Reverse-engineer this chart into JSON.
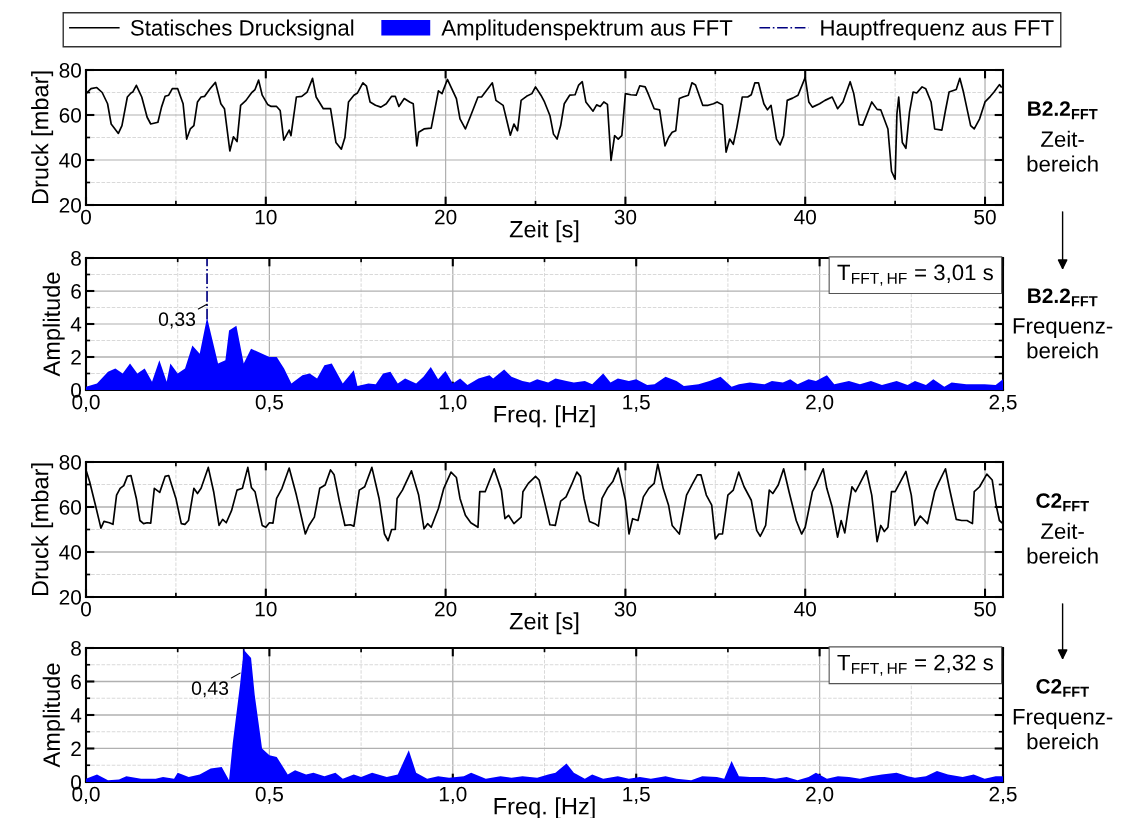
{
  "chart_data": [
    {
      "type": "line",
      "legend": "top",
      "grid": true,
      "xlabel": "Zeit [s]",
      "ylabel": "Druck [mbar]",
      "xlim": [
        0,
        51
      ],
      "xticks": [
        0,
        10,
        20,
        30,
        40,
        50
      ],
      "ylim": [
        20,
        80
      ],
      "yticks": [
        20,
        40,
        60,
        80
      ],
      "annotations": [
        "B2.2$_{FFT}$",
        "Zeit-\nbereich"
      ],
      "series": [
        {
          "name": "Statisches Drucksignal",
          "color": "#000000",
          "x": [
            0,
            0.28,
            0.6,
            0.9,
            1.2,
            1.4,
            1.8,
            2.0,
            2.3,
            2.5,
            2.6,
            2.8,
            3.1,
            3.4,
            3.6,
            4.0,
            4.2,
            4.4,
            4.6,
            4.8,
            5.1,
            5.4,
            5.6,
            5.8,
            6.0,
            6.2,
            6.4,
            6.6,
            6.9,
            7.2,
            7.5,
            7.7,
            8.0,
            8.2,
            8.4,
            8.6,
            8.9,
            9.2,
            9.4,
            9.6,
            9.8,
            10.1,
            10.3,
            10.6,
            10.8,
            11.0,
            11.3,
            11.4,
            11.7,
            12.0,
            12.3,
            12.6,
            12.8,
            13.2,
            13.6,
            13.9,
            14.2,
            14.4,
            14.6,
            14.9,
            15.1,
            15.4,
            15.6,
            15.8,
            16.1,
            16.4,
            16.7,
            17.0,
            17.2,
            17.4,
            17.7,
            18.0,
            18.2,
            18.4,
            18.5,
            18.8,
            19.2,
            19.6,
            19.8,
            20.1,
            20.6,
            20.8,
            21.1,
            21.4,
            21.8,
            22.0,
            22.6,
            22.8,
            23.2,
            23.6,
            23.8,
            24.0,
            24.2,
            24.5,
            24.8,
            25.0,
            25.3,
            25.5,
            25.8,
            26.0,
            26.2,
            26.4,
            26.6,
            26.9,
            27.2,
            27.4,
            27.6,
            27.8,
            28.2,
            28.4,
            28.6,
            28.8,
            29.0,
            29.2,
            29.4,
            29.6,
            29.8,
            30.0,
            30.3,
            30.6,
            30.8,
            31.1,
            31.3,
            31.6,
            31.9,
            32.2,
            32.4,
            32.6,
            32.8,
            33.0,
            33.2,
            33.5,
            33.7,
            33.9,
            34.3,
            34.6,
            34.9,
            35.1,
            35.4,
            35.6,
            35.8,
            36.0,
            36.2,
            36.5,
            36.8,
            37.0,
            37.2,
            37.4,
            37.7,
            37.9,
            38.1,
            38.4,
            38.6,
            38.8,
            39.0,
            39.3,
            39.6,
            40.0,
            40.2,
            40.4,
            40.8,
            41.1,
            41.5,
            41.8,
            42.1,
            42.5,
            42.7,
            43.0,
            43.2,
            43.7,
            44.0,
            44.2,
            44.6,
            44.8,
            45.0,
            45.1,
            45.2,
            45.4,
            45.6,
            45.8,
            46.0,
            46.2,
            46.5,
            46.7,
            47.0,
            47.2,
            47.6,
            47.8,
            48.0,
            48.4,
            48.6,
            48.8,
            49.2,
            49.4,
            49.7,
            50.0,
            50.3,
            50.5,
            50.8,
            50.9
          ],
          "values": [
            69.5,
            71.7,
            72.2,
            70,
            65,
            56,
            51.8,
            55.3,
            68,
            69.8,
            70.2,
            73.2,
            68,
            59,
            56,
            56.8,
            63.5,
            68.3,
            68.8,
            71.7,
            71.7,
            65,
            49.3,
            53.8,
            55.3,
            65.8,
            68,
            68.3,
            71.7,
            74.5,
            65,
            62.8,
            44,
            50.3,
            48.2,
            64.3,
            66.5,
            69.8,
            71.3,
            75.5,
            68.8,
            64.7,
            63.8,
            63.8,
            62,
            48.8,
            53.3,
            50.8,
            68,
            68.3,
            70.2,
            76.3,
            68,
            62.8,
            62.8,
            47.8,
            44.8,
            50,
            65.8,
            68.8,
            69.8,
            74.3,
            72.8,
            65.8,
            64.3,
            63.5,
            65,
            68.3,
            68.3,
            63.8,
            67.3,
            65.8,
            65,
            46.3,
            52.3,
            53.8,
            54.2,
            70.7,
            69.5,
            75.8,
            67.3,
            58.3,
            53.8,
            59.8,
            68,
            68,
            74.3,
            66.5,
            64.3,
            51,
            56,
            53,
            66.5,
            68.3,
            69.5,
            72.5,
            68.8,
            65.8,
            59.8,
            51.5,
            49.3,
            55.3,
            65,
            68.8,
            69,
            73.3,
            74.8,
            65.8,
            61.7,
            64.5,
            63.8,
            65.8,
            64.7,
            39.8,
            50.8,
            49.3,
            50.8,
            69.5,
            69,
            68.8,
            73,
            72.5,
            68.8,
            62.8,
            62.3,
            46.3,
            50,
            52.3,
            53,
            67.3,
            68,
            68.8,
            74.3,
            73.3,
            64.3,
            64.3,
            65,
            65.8,
            64.5,
            43.5,
            49.3,
            47,
            54.5,
            68,
            68,
            69,
            74.3,
            74.3,
            65,
            62.3,
            64.3,
            49.3,
            46.7,
            50.8,
            66.5,
            67.5,
            68.8,
            76.7,
            65.8,
            63.5,
            65,
            66.5,
            68,
            62.8,
            65.8,
            74.8,
            69.5,
            55.7,
            55.5,
            65.8,
            62.5,
            62.3,
            53.8,
            35,
            31.5,
            60.5,
            68,
            47.8,
            45.2,
            61.3,
            70.2,
            69.8,
            72.5,
            71.7,
            65.8,
            53.8,
            53.3,
            62,
            70.2,
            71.3,
            76.3,
            70.2,
            55.3,
            53.8,
            58.3,
            65.8,
            68.3,
            70.2,
            73.5,
            72.5
          ]
        }
      ]
    },
    {
      "type": "area",
      "legend": "top",
      "grid": true,
      "xlabel": "Freq. [Hz]",
      "ylabel": "Amplitude",
      "xlim": [
        0,
        2.5
      ],
      "xticks": [
        {
          "value": 0,
          "label": "0,0"
        },
        {
          "value": 0.5,
          "label": "0,5"
        },
        {
          "value": 1,
          "label": "1,0"
        },
        {
          "value": 1.5,
          "label": "1,5"
        },
        {
          "value": 2,
          "label": "2,0"
        },
        {
          "value": 2.5,
          "label": "2,5"
        }
      ],
      "ylim": [
        0,
        8
      ],
      "yticks": [
        0,
        2,
        4,
        6,
        8
      ],
      "ref_lines": [
        {
          "axis": "x",
          "value": 0.33,
          "label": "Hauptfrequenz aus FFT",
          "color": "#000080",
          "line_style": "dashdot"
        }
      ],
      "annotations": [
        {
          "text": "0,33",
          "x": 0.33,
          "y": 5.2
        },
        "T$_{FFT,HF}$ = 3,01 s",
        "B2.2$_{FFT}$",
        "Frequenz-\nbereich"
      ],
      "series": [
        {
          "name": "Amplitudenspektrum aus FFT",
          "color": "#0000ff",
          "x": [
            0,
            0.03,
            0.06,
            0.08,
            0.1,
            0.12,
            0.14,
            0.16,
            0.18,
            0.2,
            0.22,
            0.23,
            0.25,
            0.27,
            0.29,
            0.31,
            0.33,
            0.36,
            0.38,
            0.39,
            0.41,
            0.43,
            0.45,
            0.47,
            0.5,
            0.52,
            0.54,
            0.56,
            0.59,
            0.61,
            0.63,
            0.65,
            0.67,
            0.7,
            0.73,
            0.74,
            0.77,
            0.79,
            0.81,
            0.83,
            0.85,
            0.87,
            0.9,
            0.92,
            0.94,
            0.96,
            0.98,
            1.0,
            1.02,
            1.04,
            1.07,
            1.1,
            1.11,
            1.14,
            1.16,
            1.19,
            1.21,
            1.23,
            1.26,
            1.28,
            1.31,
            1.33,
            1.36,
            1.38,
            1.41,
            1.43,
            1.45,
            1.48,
            1.5,
            1.53,
            1.55,
            1.58,
            1.61,
            1.63,
            1.67,
            1.7,
            1.73,
            1.76,
            1.78,
            1.81,
            1.85,
            1.87,
            1.9,
            1.92,
            1.94,
            1.97,
            1.99,
            2.02,
            2.04,
            2.08,
            2.11,
            2.14,
            2.17,
            2.21,
            2.24,
            2.26,
            2.29,
            2.31,
            2.34,
            2.36,
            2.4,
            2.45,
            2.48,
            2.5
          ],
          "values": [
            0.2,
            0.4,
            1.1,
            1.3,
            1.0,
            1.6,
            1.0,
            1.3,
            0.5,
            1.8,
            0.5,
            1.6,
            1.0,
            1.3,
            2.7,
            2.2,
            4.4,
            1.6,
            1.8,
            3.6,
            3.9,
            1.6,
            2.5,
            2.3,
            2.0,
            2.0,
            1.3,
            0.4,
            0.9,
            1.0,
            0.7,
            1.5,
            1.6,
            0.4,
            1.2,
            0.25,
            0.4,
            0.35,
            1.0,
            1.1,
            0.4,
            0.7,
            0.4,
            0.8,
            1.4,
            0.65,
            1.15,
            0.4,
            0.7,
            0.3,
            0.7,
            0.9,
            0.7,
            1.25,
            0.8,
            0.55,
            0.45,
            0.65,
            0.45,
            0.7,
            0.55,
            0.45,
            0.55,
            0.35,
            1.0,
            0.45,
            0.7,
            0.55,
            0.65,
            0.3,
            0.35,
            0.8,
            0.55,
            0.25,
            0.35,
            0.55,
            0.8,
            0.2,
            0.35,
            0.45,
            0.35,
            0.55,
            0.45,
            0.65,
            0.35,
            0.65,
            0.55,
            0.9,
            0.35,
            0.55,
            0.35,
            0.55,
            0.3,
            0.55,
            0.3,
            0.55,
            0.3,
            0.65,
            0.2,
            0.45,
            0.35,
            0.35,
            0.3,
            0.65
          ]
        }
      ]
    },
    {
      "type": "line",
      "grid": true,
      "xlabel": "Zeit [s]",
      "ylabel": "Druck [mbar]",
      "xlim": [
        0,
        51
      ],
      "xticks": [
        0,
        10,
        20,
        30,
        40,
        50
      ],
      "ylim": [
        20,
        80
      ],
      "yticks": [
        20,
        40,
        60,
        80
      ],
      "annotations": [
        "C2$_{FFT}$",
        "Zeit-\nbereich"
      ],
      "series": [
        {
          "color": "#000000",
          "x": [
            0,
            0.2,
            0.55,
            0.83,
            1.0,
            1.3,
            1.5,
            1.7,
            1.9,
            2.1,
            2.3,
            2.5,
            2.8,
            3.0,
            3.2,
            3.4,
            3.6,
            3.8,
            4.1,
            4.4,
            4.6,
            5.0,
            5.3,
            5.5,
            5.7,
            6.0,
            6.2,
            6.4,
            6.8,
            7.1,
            7.4,
            7.6,
            7.8,
            8.1,
            8.4,
            8.7,
            9.0,
            9.2,
            9.4,
            9.8,
            10.0,
            10.2,
            10.4,
            10.6,
            10.9,
            11.3,
            11.7,
            12.2,
            12.4,
            12.7,
            13.0,
            13.3,
            13.6,
            13.8,
            14.1,
            14.4,
            14.7,
            14.9,
            15.2,
            15.5,
            15.9,
            16.3,
            16.6,
            16.8,
            17.0,
            17.2,
            17.3,
            17.6,
            18.1,
            18.5,
            18.8,
            19.0,
            19.2,
            19.6,
            19.9,
            20.3,
            20.6,
            20.8,
            21.1,
            21.4,
            21.8,
            21.9,
            22.2,
            22.7,
            23.1,
            23.3,
            23.5,
            23.8,
            24.2,
            24.3,
            24.6,
            25.0,
            25.2,
            25.5,
            25.8,
            26.1,
            26.4,
            26.7,
            27.0,
            27.3,
            27.5,
            27.7,
            28.0,
            28.3,
            28.5,
            28.7,
            29.0,
            29.3,
            29.6,
            30.0,
            30.2,
            30.4,
            30.7,
            31.0,
            31.3,
            31.6,
            31.8,
            32.1,
            32.4,
            32.6,
            33.0,
            33.4,
            33.7,
            34.0,
            34.2,
            34.5,
            34.8,
            35.0,
            35.2,
            35.4,
            35.7,
            36.0,
            36.3,
            36.6,
            37.0,
            37.3,
            37.5,
            37.8,
            38.0,
            38.2,
            38.5,
            38.8,
            39.1,
            39.5,
            39.8,
            40.0,
            40.4,
            40.6,
            41.0,
            41.2,
            41.5,
            41.8,
            42.0,
            42.2,
            42.4,
            42.6,
            42.8,
            43.0,
            43.4,
            43.7,
            44.0,
            44.2,
            44.4,
            44.6,
            44.8,
            45.0,
            45.6,
            45.9,
            46.1,
            46.4,
            46.8,
            47.2,
            47.4,
            47.8,
            48.0,
            48.4,
            48.7,
            49.0,
            49.3,
            49.4,
            49.7,
            50.1,
            50.4,
            50.6,
            50.8,
            51.0
          ],
          "values": [
            76.5,
            71.3,
            60,
            50.6,
            53.6,
            53,
            52.3,
            65.3,
            68.3,
            69.5,
            73.6,
            74,
            63.8,
            54,
            52.6,
            53,
            52.8,
            68.3,
            66.5,
            73.6,
            74,
            63.8,
            52.6,
            52.3,
            54,
            68.3,
            66,
            68.3,
            77.6,
            66.8,
            51.8,
            54.5,
            53,
            58.5,
            67.5,
            68.3,
            77.6,
            68.6,
            66.8,
            51.8,
            51,
            53,
            52.8,
            63.8,
            68.3,
            77.3,
            65.3,
            48,
            51.8,
            55.5,
            68.3,
            69.8,
            76.5,
            74.3,
            62.3,
            51.8,
            52.1,
            51.5,
            67.5,
            69,
            77.6,
            63.8,
            48,
            45,
            50,
            50,
            63.8,
            67.5,
            76.1,
            65.3,
            50.3,
            52.6,
            51,
            59.3,
            68.3,
            75.5,
            73.1,
            63.8,
            56.3,
            53,
            51,
            66.8,
            66.8,
            77,
            67.5,
            54.8,
            56.3,
            52.6,
            55.5,
            66.8,
            70.5,
            73.6,
            72,
            62.3,
            52.1,
            51.8,
            62.6,
            64.5,
            69.8,
            75.5,
            73.6,
            63.8,
            53.6,
            52.6,
            51.5,
            63.8,
            68.3,
            71.3,
            77.3,
            63,
            48,
            54.8,
            54,
            64.5,
            68.3,
            70.5,
            79.1,
            68.3,
            60.8,
            51.8,
            48,
            65.3,
            69.8,
            74.3,
            74.3,
            65.3,
            60.8,
            45.8,
            48,
            48,
            65.3,
            67.5,
            75.5,
            69,
            63,
            49.6,
            47,
            51.8,
            67.5,
            66,
            69.8,
            77,
            66.8,
            54,
            48,
            51,
            66.8,
            69.8,
            77,
            68.3,
            60,
            46.6,
            54,
            48.5,
            59.3,
            69,
            66.8,
            69.8,
            76.1,
            65.3,
            44.6,
            51.8,
            49.1,
            51,
            66.8,
            66.8,
            75.8,
            65.3,
            51.8,
            56,
            52.6,
            66.8,
            70.5,
            77,
            69,
            54.5,
            54,
            54,
            52.6,
            66.8,
            69,
            74.6,
            72,
            61.5,
            54,
            52.6
          ]
        }
      ]
    },
    {
      "type": "area",
      "grid": true,
      "xlabel": "Freq. [Hz]",
      "ylabel": "Amplitude",
      "xlim": [
        0,
        2.5
      ],
      "xticks": [
        {
          "value": 0,
          "label": "0,0"
        },
        {
          "value": 0.5,
          "label": "0,5"
        },
        {
          "value": 1,
          "label": "1,0"
        },
        {
          "value": 1.5,
          "label": "1,5"
        },
        {
          "value": 2,
          "label": "2,0"
        },
        {
          "value": 2.5,
          "label": "2,5"
        }
      ],
      "ylim": [
        0,
        8
      ],
      "yticks": [
        0,
        2,
        4,
        6,
        8
      ],
      "ref_lines": [
        {
          "axis": "x",
          "value": 0.43,
          "color": "#000080",
          "line_style": "dashdot"
        }
      ],
      "annotations": [
        {
          "text": "0,43",
          "x": 0.42,
          "y": 6.5
        },
        "T$_{FFT,HF}$ = 2,32 s",
        "C2$_{FFT}$",
        "Frequenz-\nbereich"
      ],
      "series": [
        {
          "color": "#0000ff",
          "x": [
            0,
            0.03,
            0.06,
            0.09,
            0.11,
            0.15,
            0.19,
            0.21,
            0.24,
            0.25,
            0.28,
            0.31,
            0.34,
            0.37,
            0.39,
            0.4,
            0.42,
            0.43,
            0.45,
            0.46,
            0.47,
            0.48,
            0.5,
            0.52,
            0.55,
            0.57,
            0.6,
            0.62,
            0.65,
            0.68,
            0.7,
            0.73,
            0.75,
            0.78,
            0.82,
            0.85,
            0.88,
            0.9,
            0.93,
            0.96,
            0.99,
            1.03,
            1.05,
            1.09,
            1.13,
            1.16,
            1.19,
            1.23,
            1.26,
            1.28,
            1.31,
            1.33,
            1.36,
            1.38,
            1.41,
            1.45,
            1.48,
            1.51,
            1.54,
            1.58,
            1.61,
            1.65,
            1.68,
            1.72,
            1.74,
            1.76,
            1.78,
            1.81,
            1.85,
            1.88,
            1.91,
            1.94,
            1.97,
            1.99,
            2.02,
            2.05,
            2.08,
            2.11,
            2.14,
            2.17,
            2.21,
            2.24,
            2.26,
            2.29,
            2.32,
            2.35,
            2.39,
            2.42,
            2.45,
            2.48,
            2.5
          ],
          "values": [
            0.2,
            0.45,
            0.1,
            0.15,
            0.35,
            0.2,
            0.2,
            0.3,
            0.2,
            0.55,
            0.3,
            0.45,
            0.8,
            0.9,
            0.1,
            2.3,
            5.8,
            7.9,
            7.4,
            5.2,
            3.6,
            2.0,
            1.6,
            1.5,
            0.45,
            0.7,
            0.45,
            0.55,
            0.35,
            0.55,
            0.2,
            0.45,
            0.3,
            0.55,
            0.3,
            0.45,
            1.9,
            0.55,
            0.2,
            0.35,
            0.25,
            0.35,
            0.55,
            0.2,
            0.35,
            0.25,
            0.35,
            0.25,
            0.45,
            0.55,
            1.1,
            0.55,
            0.2,
            0.45,
            0.2,
            0.35,
            0.2,
            0.3,
            0.2,
            0.35,
            0.2,
            0.1,
            0.35,
            0.3,
            0.2,
            1.25,
            0.35,
            0.3,
            0.3,
            0.2,
            0.3,
            0.1,
            0.3,
            0.55,
            0.2,
            0.35,
            0.3,
            0.2,
            0.35,
            0.45,
            0.55,
            0.35,
            0.25,
            0.35,
            0.65,
            0.45,
            0.3,
            0.45,
            0.2,
            0.35,
            0.35
          ]
        }
      ]
    }
  ]
}
